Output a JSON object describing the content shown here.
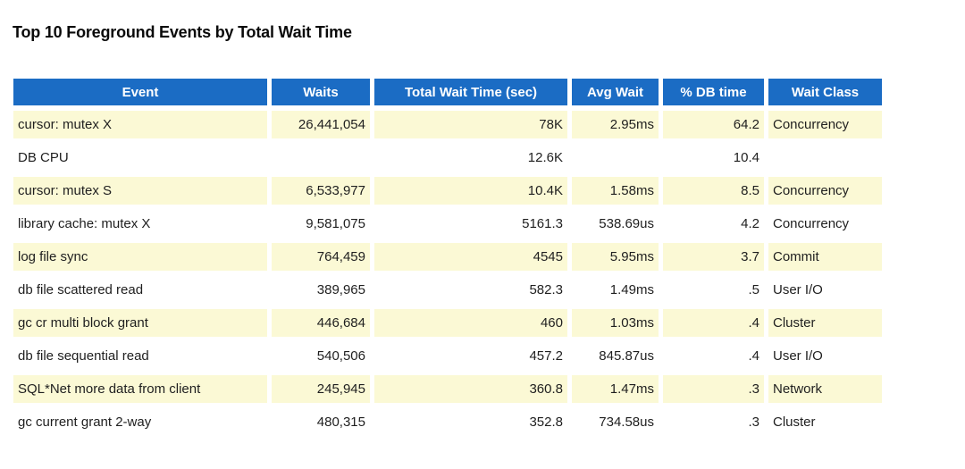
{
  "title": "Top 10 Foreground Events by Total Wait Time",
  "colors": {
    "header_bg": "#1b6cc4",
    "header_text": "#ffffff",
    "row_bg": "#ffffff",
    "row_alt_bg": "#fbf9d5",
    "text": "#1f1f1f"
  },
  "table": {
    "columns": [
      {
        "label": "Event",
        "align": "left"
      },
      {
        "label": "Waits",
        "align": "right"
      },
      {
        "label": "Total Wait Time (sec)",
        "align": "right"
      },
      {
        "label": "Avg Wait",
        "align": "right"
      },
      {
        "label": "% DB time",
        "align": "right"
      },
      {
        "label": "Wait Class",
        "align": "left"
      }
    ],
    "rows": [
      {
        "event": "cursor: mutex X",
        "waits": "26,441,054",
        "total_wait_time_sec": "78K",
        "avg_wait": "2.95ms",
        "pct_db_time": "64.2",
        "wait_class": "Concurrency"
      },
      {
        "event": "DB CPU",
        "waits": "",
        "total_wait_time_sec": "12.6K",
        "avg_wait": "",
        "pct_db_time": "10.4",
        "wait_class": ""
      },
      {
        "event": "cursor: mutex S",
        "waits": "6,533,977",
        "total_wait_time_sec": "10.4K",
        "avg_wait": "1.58ms",
        "pct_db_time": "8.5",
        "wait_class": "Concurrency"
      },
      {
        "event": "library cache: mutex X",
        "waits": "9,581,075",
        "total_wait_time_sec": "5161.3",
        "avg_wait": "538.69us",
        "pct_db_time": "4.2",
        "wait_class": "Concurrency"
      },
      {
        "event": "log file sync",
        "waits": "764,459",
        "total_wait_time_sec": "4545",
        "avg_wait": "5.95ms",
        "pct_db_time": "3.7",
        "wait_class": "Commit"
      },
      {
        "event": "db file scattered read",
        "waits": "389,965",
        "total_wait_time_sec": "582.3",
        "avg_wait": "1.49ms",
        "pct_db_time": ".5",
        "wait_class": "User I/O"
      },
      {
        "event": "gc cr multi block grant",
        "waits": "446,684",
        "total_wait_time_sec": "460",
        "avg_wait": "1.03ms",
        "pct_db_time": ".4",
        "wait_class": "Cluster"
      },
      {
        "event": "db file sequential read",
        "waits": "540,506",
        "total_wait_time_sec": "457.2",
        "avg_wait": "845.87us",
        "pct_db_time": ".4",
        "wait_class": "User I/O"
      },
      {
        "event": "SQL*Net more data from client",
        "waits": "245,945",
        "total_wait_time_sec": "360.8",
        "avg_wait": "1.47ms",
        "pct_db_time": ".3",
        "wait_class": "Network"
      },
      {
        "event": "gc current grant 2-way",
        "waits": "480,315",
        "total_wait_time_sec": "352.8",
        "avg_wait": "734.58us",
        "pct_db_time": ".3",
        "wait_class": "Cluster"
      }
    ]
  }
}
